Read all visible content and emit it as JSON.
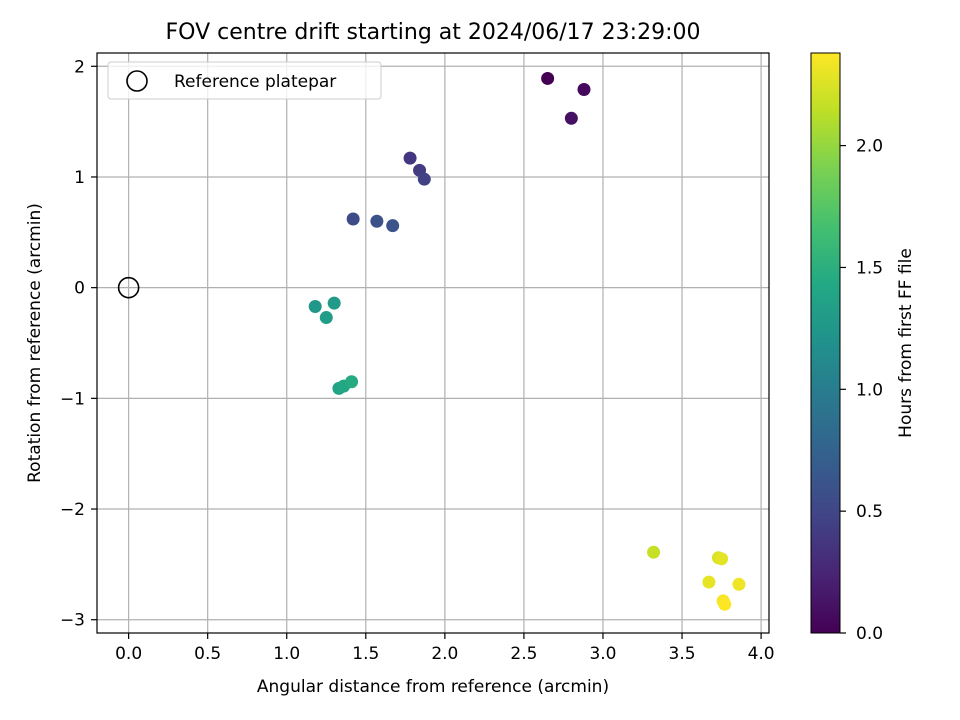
{
  "chart_data": {
    "type": "scatter",
    "title": "FOV centre drift starting at 2024/06/17 23:29:00",
    "xlabel": "Angular distance from reference (arcmin)",
    "ylabel": "Rotation from reference (arcmin)",
    "xlim": [
      -0.2,
      4.05
    ],
    "ylim": [
      -3.12,
      2.12
    ],
    "xticks": [
      0.0,
      0.5,
      1.0,
      1.5,
      2.0,
      2.5,
      3.0,
      3.5,
      4.0
    ],
    "xtick_labels": [
      "0.0",
      "0.5",
      "1.0",
      "1.5",
      "2.0",
      "2.5",
      "3.0",
      "3.5",
      "4.0"
    ],
    "yticks": [
      -3,
      -2,
      -1,
      0,
      1,
      2
    ],
    "ytick_labels": [
      "−3",
      "−2",
      "−1",
      "0",
      "1",
      "2"
    ],
    "grid": true,
    "legend": {
      "location": "upper-left",
      "entries": [
        "Reference platepar"
      ]
    },
    "reference": {
      "x": 0.0,
      "y": 0.0,
      "label": "Reference platepar"
    },
    "colorbar": {
      "label": "Hours from first FF file",
      "range": [
        0.0,
        2.38
      ],
      "ticks": [
        0.0,
        0.5,
        1.0,
        1.5,
        2.0
      ],
      "tick_labels": [
        "0.0",
        "0.5",
        "1.0",
        "1.5",
        "2.0"
      ],
      "colormap": "viridis"
    },
    "points": [
      {
        "x": 2.65,
        "y": 1.89,
        "hours": 0.0
      },
      {
        "x": 2.88,
        "y": 1.79,
        "hours": 0.05
      },
      {
        "x": 2.8,
        "y": 1.53,
        "hours": 0.1
      },
      {
        "x": 1.78,
        "y": 1.17,
        "hours": 0.38
      },
      {
        "x": 1.84,
        "y": 1.06,
        "hours": 0.42
      },
      {
        "x": 1.87,
        "y": 0.98,
        "hours": 0.46
      },
      {
        "x": 1.42,
        "y": 0.62,
        "hours": 0.55
      },
      {
        "x": 1.57,
        "y": 0.6,
        "hours": 0.58
      },
      {
        "x": 1.67,
        "y": 0.56,
        "hours": 0.62
      },
      {
        "x": 1.18,
        "y": -0.17,
        "hours": 1.25
      },
      {
        "x": 1.3,
        "y": -0.14,
        "hours": 1.28
      },
      {
        "x": 1.25,
        "y": -0.27,
        "hours": 1.3
      },
      {
        "x": 1.33,
        "y": -0.91,
        "hours": 1.38
      },
      {
        "x": 1.36,
        "y": -0.89,
        "hours": 1.42
      },
      {
        "x": 1.41,
        "y": -0.85,
        "hours": 1.45
      },
      {
        "x": 3.32,
        "y": -2.39,
        "hours": 2.18
      },
      {
        "x": 3.73,
        "y": -2.44,
        "hours": 2.25
      },
      {
        "x": 3.75,
        "y": -2.45,
        "hours": 2.28
      },
      {
        "x": 3.67,
        "y": -2.66,
        "hours": 2.3
      },
      {
        "x": 3.86,
        "y": -2.68,
        "hours": 2.32
      },
      {
        "x": 3.76,
        "y": -2.83,
        "hours": 2.35
      },
      {
        "x": 3.77,
        "y": -2.86,
        "hours": 2.38
      }
    ]
  }
}
